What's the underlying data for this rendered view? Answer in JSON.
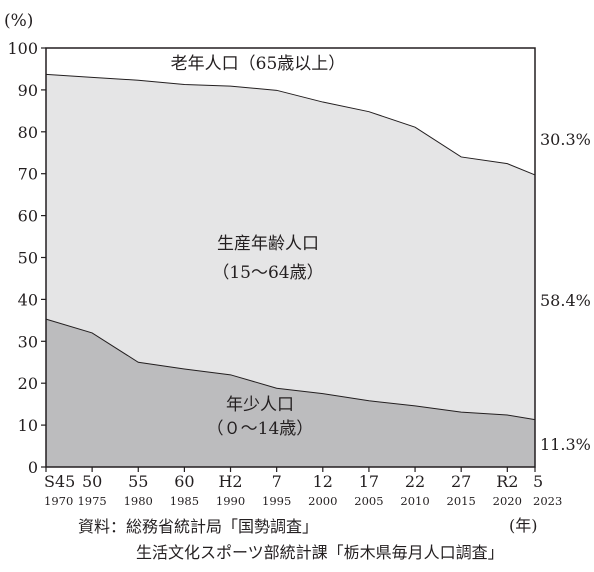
{
  "chart_data": {
    "type": "area",
    "stacked": true,
    "y_unit": "(%)",
    "x_unit": "(年)",
    "ylim": [
      0,
      100
    ],
    "y_ticks": [
      0,
      10,
      20,
      30,
      40,
      50,
      60,
      70,
      80,
      90,
      100
    ],
    "x": [
      1970,
      1975,
      1980,
      1985,
      1990,
      1995,
      2000,
      2005,
      2010,
      2015,
      2020,
      2023
    ],
    "x_tick_era": [
      "S45",
      "50",
      "55",
      "60",
      "H2",
      "7",
      "12",
      "17",
      "22",
      "27",
      "R2",
      "5"
    ],
    "x_tick_year": [
      "1970",
      "1975",
      "1980",
      "1985",
      "1990",
      "1995",
      "2000",
      "2005",
      "2010",
      "2015",
      "2020",
      "2023"
    ],
    "series": [
      {
        "name": "年少人口（0～14歳）",
        "label_lines": [
          "年少人口",
          "（０～14歳）"
        ],
        "values": [
          35.3,
          32.0,
          25.0,
          23.4,
          22.0,
          18.8,
          17.5,
          15.8,
          14.6,
          13.1,
          12.4,
          11.3
        ],
        "end_label": "11.3%",
        "color": "#bcbcbe"
      },
      {
        "name": "生産年齢人口（15～64歳）",
        "label_lines": [
          "生産年齢人口",
          "（15～64歳）"
        ],
        "values": [
          58.4,
          61.0,
          67.3,
          67.9,
          68.9,
          71.1,
          69.6,
          69.0,
          66.5,
          60.9,
          60.0,
          58.4
        ],
        "end_label": "58.4%",
        "color": "#e5e5e6"
      },
      {
        "name": "老年人口（65歳以上）",
        "label_lines": [
          "老年人口（65歳以上）"
        ],
        "values": [
          6.3,
          7.0,
          7.7,
          8.7,
          9.1,
          10.1,
          12.9,
          15.2,
          18.9,
          26.0,
          27.6,
          30.3
        ],
        "end_label": "30.3%",
        "color": "#ffffff"
      }
    ],
    "source_lines": [
      "資料：総務省統計局「国勢調査」",
      "生活文化スポーツ部統計課「栃木県毎月人口調査」"
    ]
  }
}
